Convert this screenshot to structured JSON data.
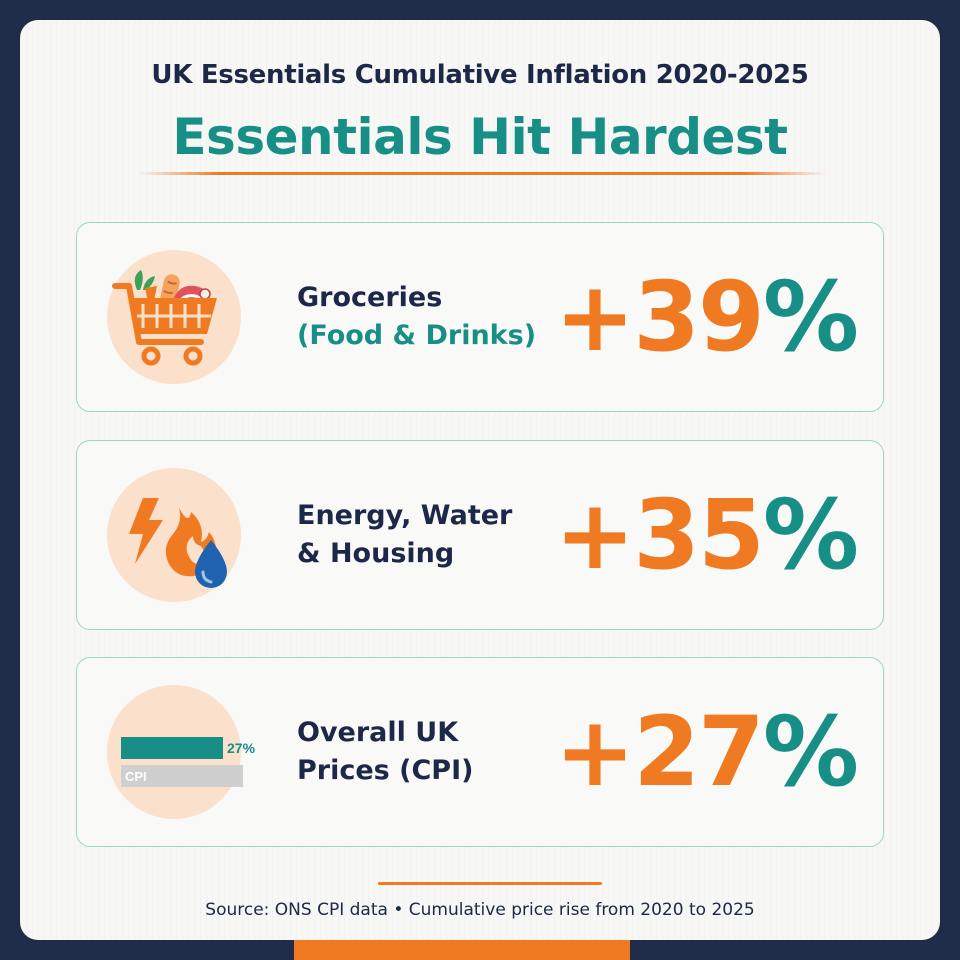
{
  "header": {
    "kicker": "UK Essentials Cumulative Inflation 2020-2025",
    "headline": "Essentials Hit Hardest"
  },
  "rows": [
    {
      "line1": "Groceries",
      "line2": "(Food & Drinks)",
      "value_num": "+39",
      "value_pct": "%",
      "icon": "shopping-cart-icon"
    },
    {
      "line1": "Energy, Water",
      "line2": "& Housing",
      "value_num": "+35",
      "value_pct": "%",
      "icon": "energy-water-icon"
    },
    {
      "line1": "Overall UK",
      "line2": "Prices (CPI)",
      "value_num": "+27",
      "value_pct": "%",
      "icon": "cpi-bar-icon",
      "icon_bar_label": "27%",
      "icon_bar_tag": "CPI",
      "icon_bar_fraction": 0.27
    }
  ],
  "footer": {
    "source": "Source: ONS CPI data • Cumulative price rise from 2020 to 2025"
  },
  "colors": {
    "background": "#1f2d4a",
    "accent_orange": "#f07a22",
    "accent_teal": "#178f86",
    "text_navy": "#1d2747"
  }
}
